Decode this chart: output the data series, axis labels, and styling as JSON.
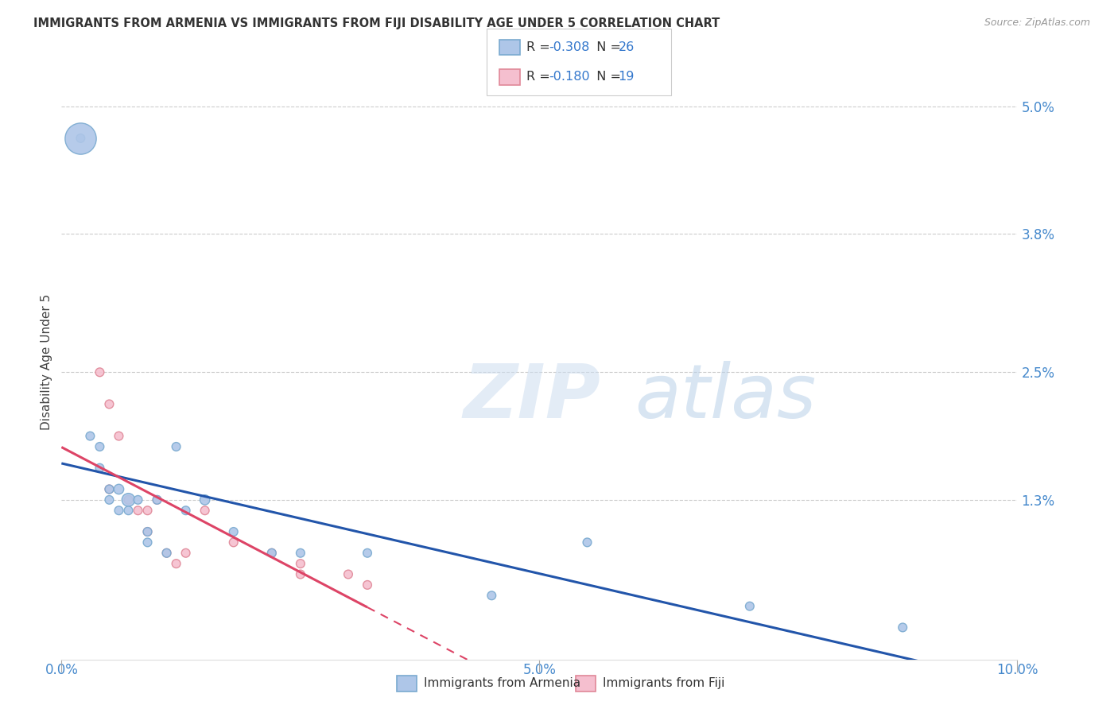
{
  "title": "IMMIGRANTS FROM ARMENIA VS IMMIGRANTS FROM FIJI DISABILITY AGE UNDER 5 CORRELATION CHART",
  "source": "Source: ZipAtlas.com",
  "ylabel": "Disability Age Under 5",
  "xlim": [
    0.0,
    0.1
  ],
  "ylim": [
    -0.002,
    0.054
  ],
  "ytick_vals": [
    0.013,
    0.025,
    0.038,
    0.05
  ],
  "ytick_labels": [
    "1.3%",
    "2.5%",
    "3.8%",
    "5.0%"
  ],
  "xtick_vals": [
    0.0,
    0.01,
    0.02,
    0.03,
    0.04,
    0.05,
    0.06,
    0.07,
    0.08,
    0.09,
    0.1
  ],
  "xtick_labels": [
    "0.0%",
    "",
    "",
    "",
    "",
    "5.0%",
    "",
    "",
    "",
    "",
    "10.0%"
  ],
  "armenia_color": "#aec6e8",
  "armenia_edge": "#7aaad0",
  "fiji_color": "#f5bfcf",
  "fiji_edge": "#e08898",
  "line_armenia": "#2255aa",
  "line_fiji": "#dd4466",
  "R_armenia": -0.308,
  "N_armenia": 26,
  "R_fiji": -0.18,
  "N_fiji": 19,
  "armenia_x": [
    0.002,
    0.003,
    0.004,
    0.004,
    0.005,
    0.005,
    0.006,
    0.006,
    0.007,
    0.007,
    0.008,
    0.009,
    0.009,
    0.01,
    0.011,
    0.012,
    0.013,
    0.015,
    0.018,
    0.022,
    0.025,
    0.032,
    0.045,
    0.055,
    0.072,
    0.088
  ],
  "armenia_y": [
    0.047,
    0.019,
    0.018,
    0.016,
    0.014,
    0.013,
    0.014,
    0.012,
    0.013,
    0.012,
    0.013,
    0.01,
    0.009,
    0.013,
    0.008,
    0.018,
    0.012,
    0.013,
    0.01,
    0.008,
    0.008,
    0.008,
    0.004,
    0.009,
    0.003,
    0.001
  ],
  "armenia_size": [
    60,
    60,
    60,
    60,
    60,
    60,
    80,
    60,
    140,
    60,
    60,
    60,
    60,
    60,
    60,
    60,
    60,
    80,
    60,
    60,
    60,
    60,
    60,
    60,
    60,
    60
  ],
  "armenia_big_idx": 22,
  "armenia_big_size": 800,
  "fiji_x": [
    0.004,
    0.005,
    0.005,
    0.006,
    0.007,
    0.008,
    0.009,
    0.009,
    0.01,
    0.011,
    0.012,
    0.013,
    0.015,
    0.018,
    0.022,
    0.025,
    0.025,
    0.03,
    0.032
  ],
  "fiji_y": [
    0.025,
    0.022,
    0.014,
    0.019,
    0.013,
    0.012,
    0.012,
    0.01,
    0.013,
    0.008,
    0.007,
    0.008,
    0.012,
    0.009,
    0.008,
    0.007,
    0.006,
    0.006,
    0.005
  ],
  "fiji_size": [
    60,
    60,
    60,
    60,
    60,
    60,
    60,
    60,
    60,
    60,
    60,
    60,
    60,
    60,
    60,
    60,
    60,
    60,
    60
  ],
  "background_color": "#ffffff",
  "grid_color": "#cccccc",
  "watermark_zip": "ZIP",
  "watermark_atlas": "atlas"
}
